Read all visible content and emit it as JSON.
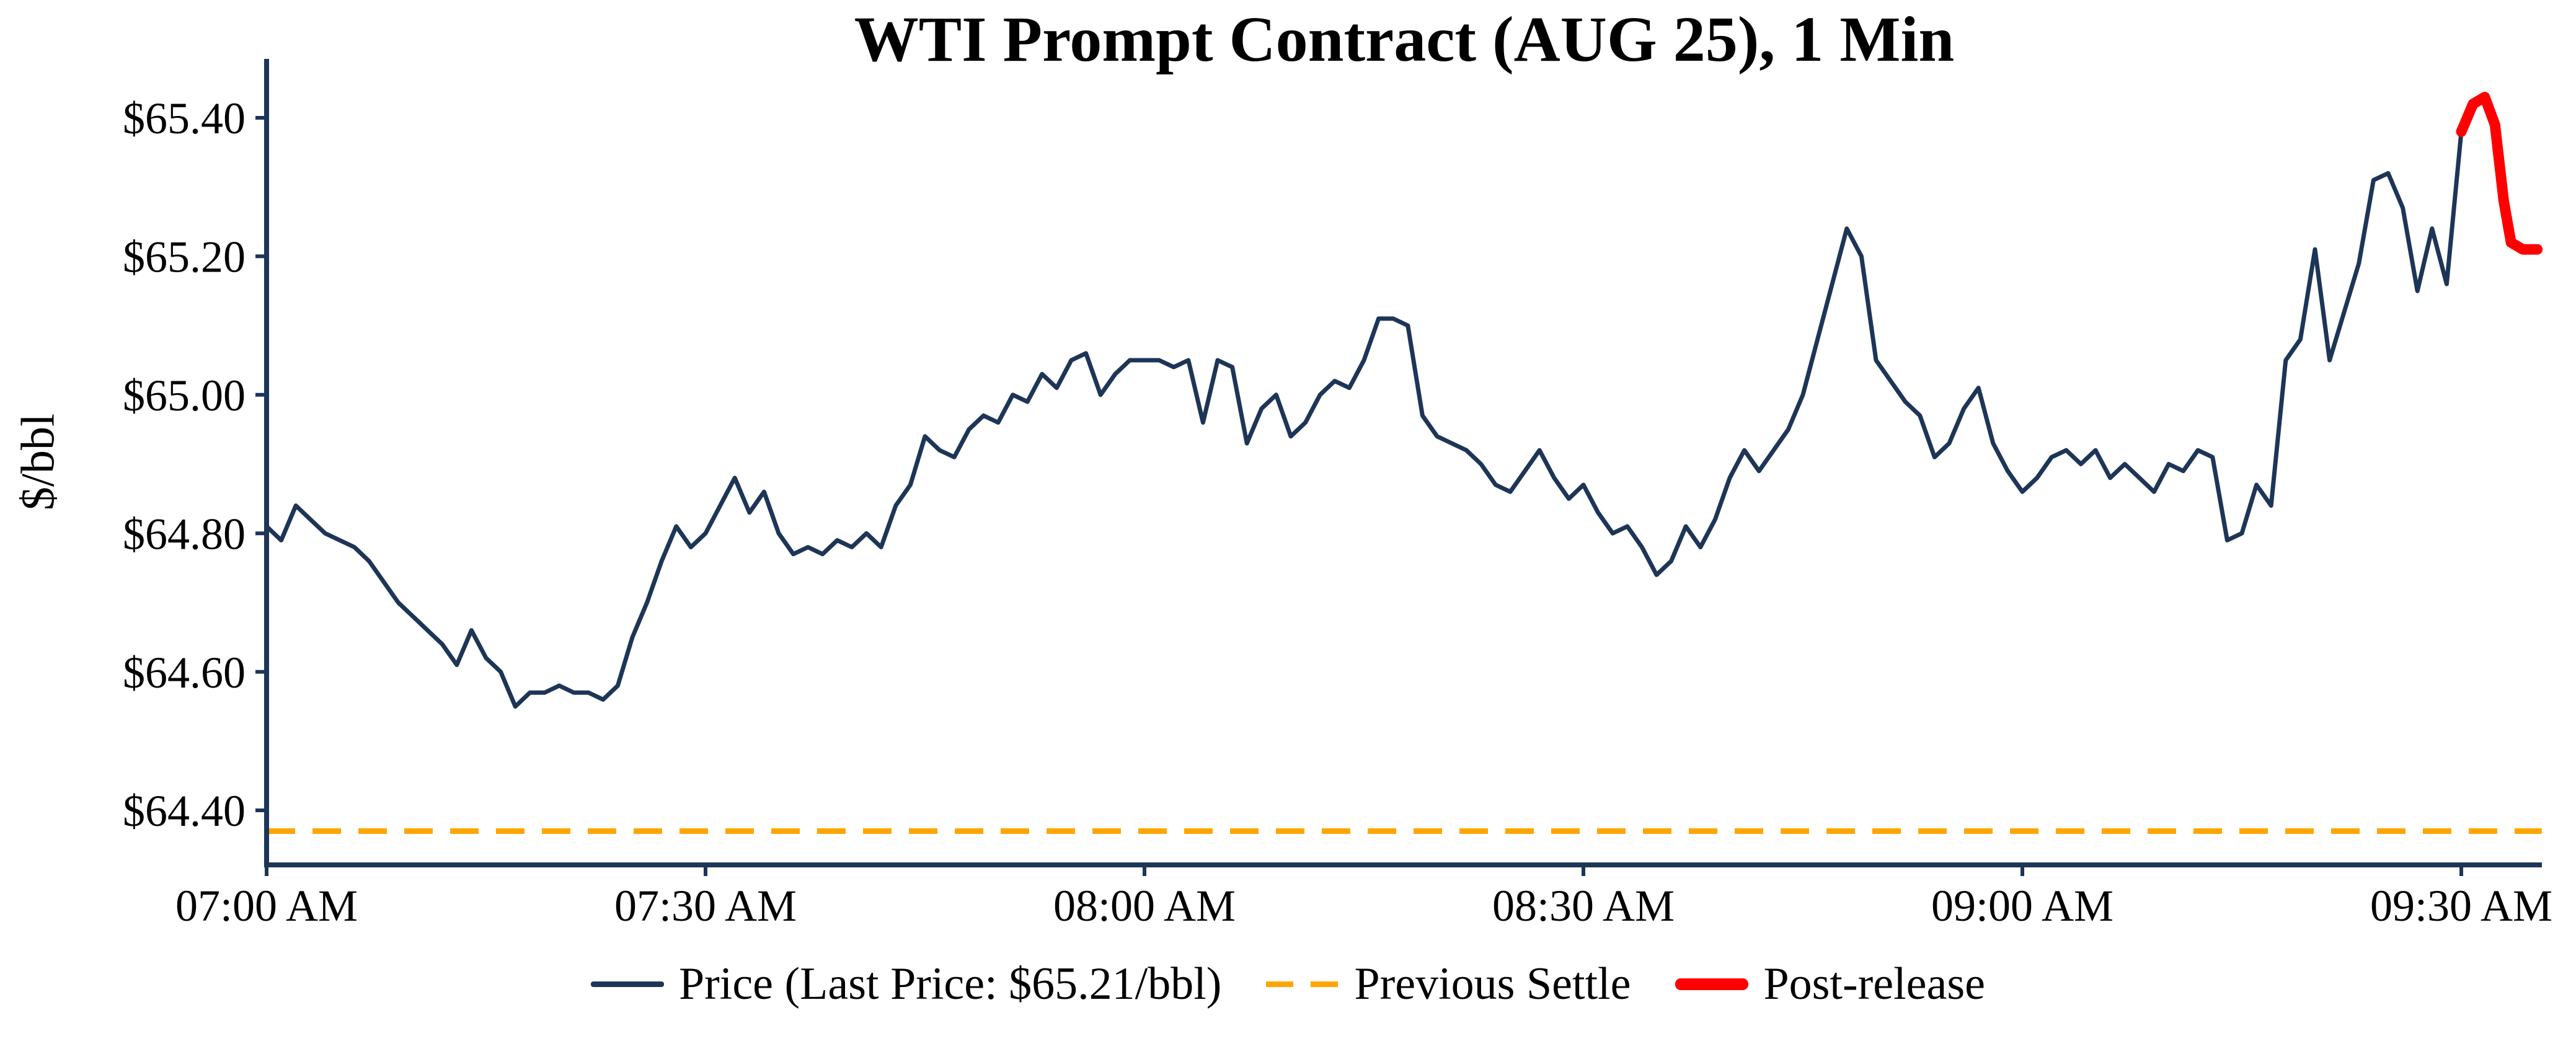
{
  "colors": {
    "price": "#1d3557",
    "settle": "#FFA500",
    "post": "#FF0000",
    "axis": "#1d3557",
    "text": "#000000",
    "background": "#ffffff"
  },
  "legend": {
    "price": "Price (Last Price: $65.21/bbl)",
    "settle": "Previous Settle",
    "post": "Post-release"
  },
  "chart_data": {
    "type": "line",
    "title": "WTI Prompt Contract (AUG 25), 1 Min",
    "xlabel": "",
    "ylabel": "$/bbl",
    "grid": false,
    "legend_position": "bottom-center",
    "x_start": "07:00 AM",
    "x_interval_minutes": 1,
    "xlim_minutes": [
      0,
      155.5
    ],
    "ylim": [
      64.32,
      65.48
    ],
    "x_ticks": [
      {
        "minute": 0,
        "label": "07:00 AM"
      },
      {
        "minute": 30,
        "label": "07:30 AM"
      },
      {
        "minute": 60,
        "label": "08:00 AM"
      },
      {
        "minute": 90,
        "label": "08:30 AM"
      },
      {
        "minute": 120,
        "label": "09:00 AM"
      },
      {
        "minute": 150,
        "label": "09:30 AM"
      }
    ],
    "y_ticks": [
      {
        "value": 65.4,
        "label": "$65.40"
      },
      {
        "value": 65.2,
        "label": "$65.20"
      },
      {
        "value": 65.0,
        "label": "$65.00"
      },
      {
        "value": 64.8,
        "label": "$64.80"
      },
      {
        "value": 64.6,
        "label": "$64.60"
      },
      {
        "value": 64.4,
        "label": "$64.40"
      }
    ],
    "last_price": 65.21,
    "last_price_label": "$65.21/bbl",
    "previous_settle": 64.37,
    "series": [
      {
        "name": "Price",
        "color_key": "price",
        "style": "solid",
        "start_minute": 0,
        "step_minutes": 1,
        "values": [
          64.81,
          64.79,
          64.84,
          64.82,
          64.8,
          64.79,
          64.78,
          64.76,
          64.73,
          64.7,
          64.68,
          64.66,
          64.64,
          64.61,
          64.66,
          64.62,
          64.6,
          64.55,
          64.57,
          64.57,
          64.58,
          64.57,
          64.57,
          64.56,
          64.58,
          64.65,
          64.7,
          64.76,
          64.81,
          64.78,
          64.8,
          64.84,
          64.88,
          64.83,
          64.86,
          64.8,
          64.77,
          64.78,
          64.77,
          64.79,
          64.78,
          64.8,
          64.78,
          64.84,
          64.87,
          64.94,
          64.92,
          64.91,
          64.95,
          64.97,
          64.96,
          65.0,
          64.99,
          65.03,
          65.01,
          65.05,
          65.06,
          65.0,
          65.03,
          65.05,
          65.05,
          65.05,
          65.04,
          65.05,
          64.96,
          65.05,
          65.04,
          64.93,
          64.98,
          65.0,
          64.94,
          64.96,
          65.0,
          65.02,
          65.01,
          65.05,
          65.11,
          65.11,
          65.1,
          64.97,
          64.94,
          64.93,
          64.92,
          64.9,
          64.87,
          64.86,
          64.89,
          64.92,
          64.88,
          64.85,
          64.87,
          64.83,
          64.8,
          64.81,
          64.78,
          64.74,
          64.76,
          64.81,
          64.78,
          64.82,
          64.88,
          64.92,
          64.89,
          64.92,
          64.95,
          65.0,
          65.08,
          65.16,
          65.24,
          65.2,
          65.05,
          65.02,
          64.99,
          64.97,
          64.91,
          64.93,
          64.98,
          65.01,
          64.93,
          64.89,
          64.86,
          64.88,
          64.91,
          64.92,
          64.9,
          64.92,
          64.88,
          64.9,
          64.88,
          64.86,
          64.9,
          64.89,
          64.92,
          64.91,
          64.79,
          64.8,
          64.87,
          64.84,
          65.05,
          65.08,
          65.21,
          65.05,
          65.12,
          65.19,
          65.31,
          65.32,
          65.27,
          65.15,
          65.24,
          65.16,
          65.38
        ]
      },
      {
        "name": "Post-release",
        "color_key": "post",
        "style": "solid-thick",
        "points": [
          [
            150.0,
            65.38
          ],
          [
            150.8,
            65.42
          ],
          [
            151.6,
            65.43
          ],
          [
            152.3,
            65.39
          ],
          [
            152.9,
            65.28
          ],
          [
            153.4,
            65.22
          ],
          [
            154.2,
            65.21
          ],
          [
            155.2,
            65.21
          ]
        ]
      },
      {
        "name": "Previous Settle",
        "color_key": "settle",
        "style": "dashed",
        "value": 64.37
      }
    ]
  }
}
